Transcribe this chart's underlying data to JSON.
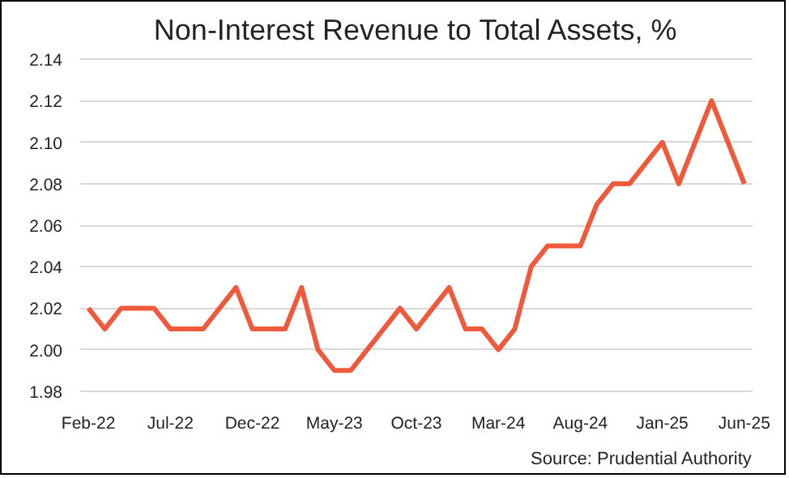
{
  "chart_data": {
    "type": "line",
    "title": "Non-Interest Revenue to Total Assets, %",
    "categories": [
      "Feb-22",
      null,
      null,
      null,
      null,
      "Jul-22",
      null,
      null,
      null,
      null,
      "Dec-22",
      null,
      null,
      null,
      null,
      "May-23",
      null,
      null,
      null,
      null,
      "Oct-23",
      null,
      null,
      null,
      null,
      "Mar-24",
      null,
      null,
      null,
      null,
      "Aug-24",
      null,
      null,
      null,
      null,
      "Jan-25",
      null,
      null,
      null,
      null,
      "Jun-25"
    ],
    "series": [
      {
        "color": "#f05a3c",
        "values": [
          2.02,
          2.01,
          2.02,
          2.02,
          2.02,
          2.01,
          2.01,
          2.01,
          2.02,
          2.03,
          2.01,
          2.01,
          2.01,
          2.03,
          2.0,
          1.99,
          1.99,
          2.0,
          2.01,
          2.02,
          2.01,
          2.02,
          2.03,
          2.01,
          2.01,
          2.0,
          2.01,
          2.04,
          2.05,
          2.05,
          2.05,
          2.07,
          2.08,
          2.08,
          2.09,
          2.1,
          2.08,
          2.1,
          2.12,
          2.1,
          2.08
        ]
      }
    ],
    "ylim": [
      1.98,
      2.14
    ],
    "yticks": [
      1.98,
      {
        "value": 2,
        "label": "2.00"
      },
      2.02,
      2.04,
      2.06,
      2.08,
      {
        "value": 2.1,
        "label": "2.10"
      },
      2.12,
      2.14
    ],
    "grid": "y",
    "marker": "none",
    "line_style": "solid",
    "annotations": [
      "Source: Prudential Authority"
    ]
  }
}
